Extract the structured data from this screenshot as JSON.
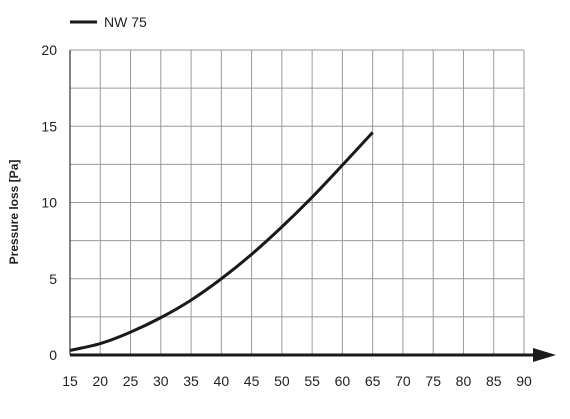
{
  "chart_data": {
    "type": "line",
    "title": "",
    "xlabel": "",
    "ylabel": "Pressure loss [Pa]",
    "xlim": [
      15,
      90
    ],
    "ylim": [
      0,
      20
    ],
    "x_ticks": [
      15,
      20,
      25,
      30,
      35,
      40,
      45,
      50,
      55,
      60,
      65,
      70,
      75,
      80,
      85,
      90
    ],
    "y_ticks": [
      0,
      5,
      10,
      15,
      20
    ],
    "grid": true,
    "legend_position": "top-left",
    "series": [
      {
        "name": "NW 75",
        "color": "#1a1a1a",
        "x": [
          15,
          20,
          25,
          30,
          35,
          40,
          45,
          50,
          55,
          60,
          65
        ],
        "y": [
          0.3,
          0.75,
          1.5,
          2.45,
          3.6,
          5.0,
          6.6,
          8.4,
          10.35,
          12.45,
          14.6
        ]
      }
    ]
  }
}
